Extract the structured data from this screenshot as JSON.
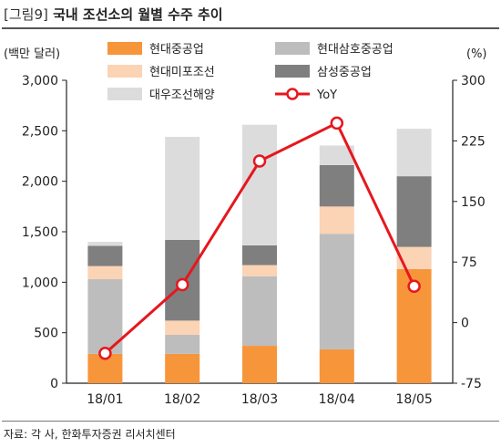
{
  "figure": {
    "tag": "[그림9]",
    "title": "국내 조선소의 월별 수주 추이",
    "source": "자료: 각 사, 한화투자증권 리서치센터"
  },
  "chart_data": {
    "type": "bar",
    "stacked": true,
    "categories": [
      "18/01",
      "18/02",
      "18/03",
      "18/04",
      "18/05"
    ],
    "left_unit": "(백만 달러)",
    "right_unit": "(%)",
    "ylim": [
      0,
      3000
    ],
    "y2lim": [
      -75,
      300
    ],
    "yticks": [
      "0",
      "500",
      "1,000",
      "1,500",
      "2,000",
      "2,500",
      "3,000"
    ],
    "y2ticks": [
      "-75",
      "0",
      "75",
      "150",
      "225",
      "300"
    ],
    "series": [
      {
        "name": "현대중공업",
        "color": "#f7953a",
        "values": [
          290,
          290,
          370,
          335,
          1130
        ]
      },
      {
        "name": "현대삼호중공업",
        "color": "#bdbdbd",
        "values": [
          740,
          190,
          690,
          1145,
          0
        ]
      },
      {
        "name": "현대미포조선",
        "color": "#fbd3b5",
        "values": [
          130,
          140,
          110,
          270,
          220
        ]
      },
      {
        "name": "삼성중공업",
        "color": "#7f7f7f",
        "values": [
          200,
          800,
          195,
          410,
          700
        ]
      },
      {
        "name": "대우조선해양",
        "color": "#dcdcdc",
        "values": [
          40,
          1020,
          1195,
          195,
          470
        ]
      }
    ],
    "line": {
      "name": "YoY",
      "color": "#e6171e",
      "axis": "right",
      "values": [
        -38,
        47,
        200,
        247,
        45
      ]
    },
    "legend_order": [
      "현대중공업",
      "현대삼호중공업",
      "현대미포조선",
      "삼성중공업",
      "대우조선해양",
      "YoY"
    ],
    "grid": false,
    "legend_position": "top"
  }
}
